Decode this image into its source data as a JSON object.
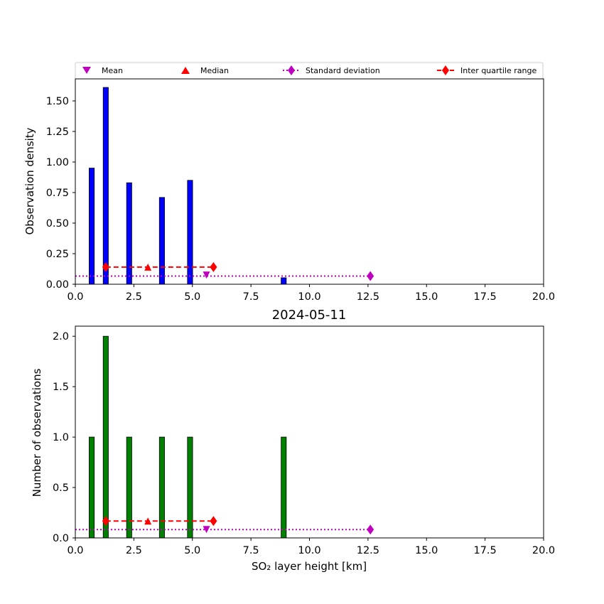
{
  "legend": {
    "location": "above top plot",
    "entries": [
      {
        "label": "Mean",
        "marker": "triangle-down",
        "color": "#bf00bf",
        "line": "none"
      },
      {
        "label": "Median",
        "marker": "triangle-up",
        "color": "#ff0000",
        "line": "none"
      },
      {
        "label": "Standard deviation",
        "marker": "diamond",
        "color": "#bf00bf",
        "line": "dotted"
      },
      {
        "label": "Inter quartile range",
        "marker": "diamond",
        "color": "#ff0000",
        "line": "dashed"
      }
    ]
  },
  "chart_data": [
    {
      "type": "bar",
      "title": "",
      "xlabel": "",
      "ylabel": "Observation density",
      "xlim": [
        0,
        20
      ],
      "ylim": [
        0,
        1.68
      ],
      "xticks": [
        "0.0",
        "2.5",
        "5.0",
        "7.5",
        "10.0",
        "12.5",
        "15.0",
        "17.5",
        "20.0"
      ],
      "yticks": [
        "0.00",
        "0.25",
        "0.50",
        "0.75",
        "1.00",
        "1.25",
        "1.50"
      ],
      "bar_color": "#0000ff",
      "bar_width": 0.22,
      "bars": [
        {
          "x": 0.7,
          "value": 0.95
        },
        {
          "x": 1.3,
          "value": 1.61
        },
        {
          "x": 2.3,
          "value": 0.83
        },
        {
          "x": 3.7,
          "value": 0.71
        },
        {
          "x": 4.9,
          "value": 0.85
        },
        {
          "x": 8.9,
          "value": 0.053
        }
      ],
      "stats": {
        "mean": {
          "x": 5.6,
          "y": 0.075
        },
        "median": {
          "x": 3.1,
          "y": 0.14
        },
        "std_range": {
          "x": [
            0,
            12.6
          ],
          "y": 0.067
        },
        "iqr_range": {
          "x": [
            1.3,
            5.9
          ],
          "y": 0.14
        }
      }
    },
    {
      "type": "bar",
      "title": "2024-05-11",
      "xlabel": "SO₂ layer height [km]",
      "ylabel": "Number of observations",
      "xlim": [
        0,
        20
      ],
      "ylim": [
        0,
        2.1
      ],
      "xticks": [
        "0.0",
        "2.5",
        "5.0",
        "7.5",
        "10.0",
        "12.5",
        "15.0",
        "17.5",
        "20.0"
      ],
      "yticks": [
        "0.0",
        "0.5",
        "1.0",
        "1.5",
        "2.0"
      ],
      "bar_color": "#008000",
      "bar_width": 0.22,
      "bars": [
        {
          "x": 0.7,
          "value": 1
        },
        {
          "x": 1.3,
          "value": 2
        },
        {
          "x": 2.3,
          "value": 1
        },
        {
          "x": 3.7,
          "value": 1
        },
        {
          "x": 4.9,
          "value": 1
        },
        {
          "x": 8.9,
          "value": 1
        }
      ],
      "stats": {
        "mean": {
          "x": 5.6,
          "y": 0.083
        },
        "median": {
          "x": 3.1,
          "y": 0.167
        },
        "std_range": {
          "x": [
            0,
            12.6
          ],
          "y": 0.083
        },
        "iqr_range": {
          "x": [
            1.3,
            5.9
          ],
          "y": 0.167
        }
      }
    }
  ]
}
